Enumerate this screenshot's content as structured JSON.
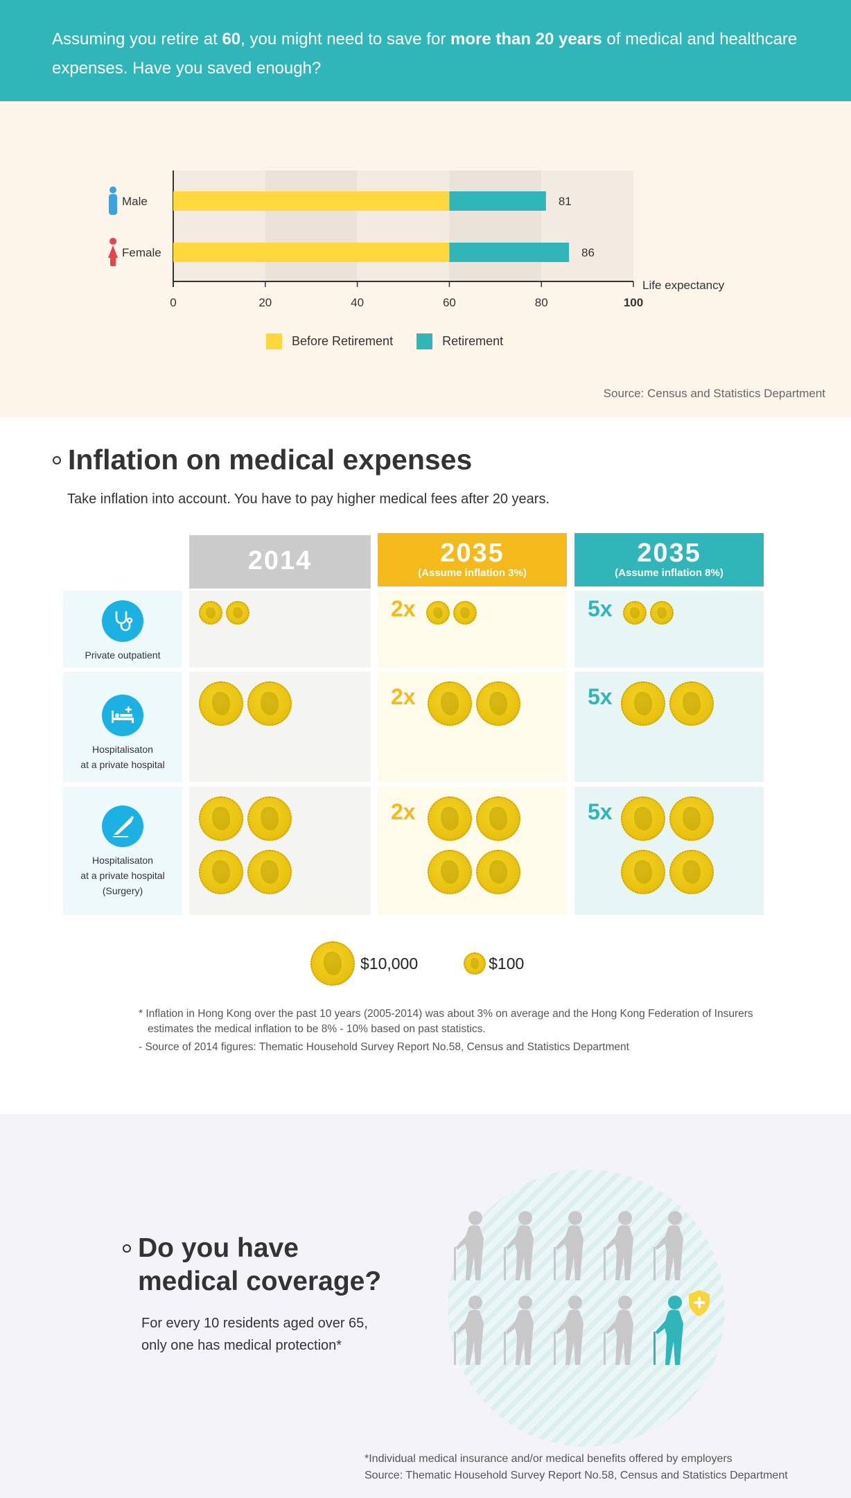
{
  "banner": {
    "part1": "Assuming you retire at ",
    "age": "60",
    "part2": ", you might need to save for ",
    "emphasis": "more than 20 years",
    "part3": " of medical and healthcare expenses. Have you saved enough?"
  },
  "chart_data": {
    "type": "bar",
    "orientation": "horizontal",
    "stacked": true,
    "categories": [
      "Male",
      "Female"
    ],
    "series": [
      {
        "name": "Before Retirement",
        "values": [
          60,
          60
        ],
        "color": "#ffd83d"
      },
      {
        "name": "Retirement",
        "values": [
          21,
          26
        ],
        "color": "#30b5b8"
      }
    ],
    "totals": [
      81,
      86
    ],
    "xlabel": "Life expectancy",
    "xticks": [
      "0",
      "20",
      "40",
      "60",
      "80",
      "100"
    ],
    "xlim": [
      0,
      100
    ],
    "legend_position": "bottom",
    "source": "Source: Census and Statistics Department"
  },
  "inflation": {
    "title": "Inflation on medical expenses",
    "subtitle": "Take inflation into account. You have to pay higher medical fees after 20 years.",
    "columns": [
      {
        "year": "2014",
        "note": "",
        "color": "#cbcbcb",
        "bg": "#f4f4f2"
      },
      {
        "year": "2035",
        "note": "(Assume inflation 3%)",
        "color": "#f4b91b",
        "bg": "#fefbea"
      },
      {
        "year": "2035",
        "note": "(Assume inflation 8%)",
        "color": "#30b5b8",
        "bg": "#e8f5f5"
      }
    ],
    "rows": [
      {
        "label_lines": [
          "Private outpatient"
        ],
        "icon": "stethoscope-icon",
        "small_coins": 2,
        "big_coins": 0
      },
      {
        "label_lines": [
          "Hospitalisaton",
          "at a private hospital"
        ],
        "icon": "hospital-bed-icon",
        "small_coins": 0,
        "big_coins": 2
      },
      {
        "label_lines": [
          "Hospitalisaton",
          "at a private hospital",
          "(Surgery)"
        ],
        "icon": "scalpel-icon",
        "small_coins": 0,
        "big_coins": 4
      }
    ],
    "multipliers": [
      "",
      "2x",
      "5x"
    ],
    "legend": {
      "big": "$10,000",
      "small": "$100"
    },
    "notes": [
      "* Inflation in Hong Kong over the past 10 years (2005-2014) was about 3% on average and the Hong Kong Federation of Insurers estimates the medical inflation to be 8% - 10% based on past statistics.",
      "- Source of 2014 figures: Thematic Household Survey Report No.58, Census and Statistics Department"
    ]
  },
  "coverage": {
    "title_line1": "Do you have",
    "title_line2": "medical coverage?",
    "text_line1": "For every 10 residents aged over 65,",
    "text_line2": "only one has medical protection*",
    "total_residents": 10,
    "protected_residents": 1,
    "note1": "*Individual medical insurance and/or medical benefits offered by employers",
    "note2": "Source: Thematic Household Survey Report No.58, Census and Statistics Department"
  }
}
